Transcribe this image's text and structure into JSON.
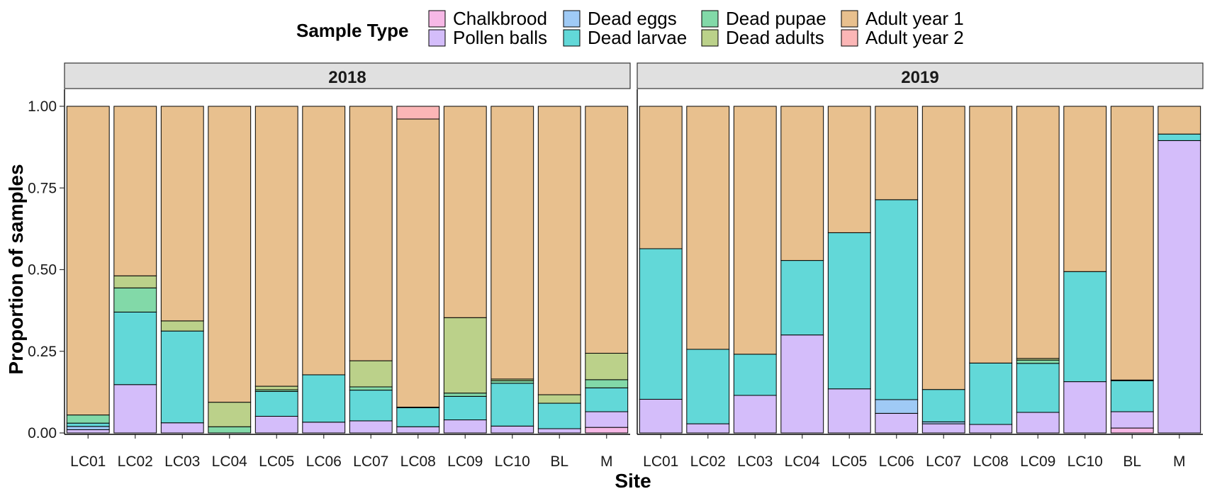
{
  "chart_data": {
    "type": "bar",
    "stacked": true,
    "xlabel": "Site",
    "ylabel": "Proportion of samples",
    "ylim": [
      0,
      1
    ],
    "yticks": [
      "0.00",
      "0.25",
      "0.50",
      "0.75",
      "1.00"
    ],
    "ytick_values": [
      0,
      0.25,
      0.5,
      0.75,
      1.0
    ],
    "grid": false,
    "legend": {
      "title": "Sample Type",
      "placement": "top",
      "items": [
        {
          "name": "Chalkbrood",
          "color": "#f7b8e6"
        },
        {
          "name": "Pollen balls",
          "color": "#d4bdfa"
        },
        {
          "name": "Dead eggs",
          "color": "#9fcaf5"
        },
        {
          "name": "Dead larvae",
          "color": "#62d8d8"
        },
        {
          "name": "Dead pupae",
          "color": "#82d9a8"
        },
        {
          "name": "Dead adults",
          "color": "#bbd18a"
        },
        {
          "name": "Adult year 1",
          "color": "#e8c08e"
        },
        {
          "name": "Adult year 2",
          "color": "#fbb6b6"
        }
      ]
    },
    "stack_order": [
      "Chalkbrood",
      "Pollen balls",
      "Dead eggs",
      "Dead larvae",
      "Dead pupae",
      "Dead adults",
      "Adult year 1",
      "Adult year 2"
    ],
    "categories": [
      "LC01",
      "LC02",
      "LC03",
      "LC04",
      "LC05",
      "LC06",
      "LC07",
      "LC08",
      "LC09",
      "LC10",
      "BL",
      "M"
    ],
    "panels": [
      {
        "title": "2018",
        "bars": [
          {
            "site": "LC01",
            "values": [
              0,
              0.01,
              0.01,
              0.01,
              0.025,
              0,
              0.945,
              0
            ]
          },
          {
            "site": "LC02",
            "values": [
              0,
              0.148,
              0,
              0.222,
              0.074,
              0.037,
              0.519,
              0
            ]
          },
          {
            "site": "LC03",
            "values": [
              0,
              0.031,
              0,
              0.281,
              0,
              0.031,
              0.657,
              0
            ]
          },
          {
            "site": "LC04",
            "values": [
              0,
              0,
              0,
              0,
              0.019,
              0.075,
              0.906,
              0
            ]
          },
          {
            "site": "LC05",
            "values": [
              0,
              0.051,
              0,
              0.076,
              0.005,
              0.011,
              0.857,
              0
            ]
          },
          {
            "site": "LC06",
            "values": [
              0,
              0.033,
              0,
              0.145,
              0,
              0,
              0.822,
              0
            ]
          },
          {
            "site": "LC07",
            "values": [
              0,
              0.037,
              0,
              0.094,
              0.01,
              0.08,
              0.779,
              0
            ]
          },
          {
            "site": "LC08",
            "values": [
              0,
              0.019,
              0,
              0.058,
              0.002,
              0,
              0.882,
              0.039
            ]
          },
          {
            "site": "LC09",
            "values": [
              0,
              0.04,
              0,
              0.072,
              0.01,
              0.231,
              0.647,
              0
            ]
          },
          {
            "site": "LC10",
            "values": [
              0,
              0.021,
              0,
              0.131,
              0.008,
              0.005,
              0.835,
              0
            ]
          },
          {
            "site": "BL",
            "values": [
              0,
              0.013,
              0,
              0.078,
              0,
              0.026,
              0.883,
              0
            ]
          },
          {
            "site": "M",
            "values": [
              0.017,
              0.048,
              0,
              0.073,
              0.025,
              0.081,
              0.756,
              0
            ]
          }
        ]
      },
      {
        "title": "2019",
        "bars": [
          {
            "site": "LC01",
            "values": [
              0,
              0.103,
              0,
              0.461,
              0,
              0,
              0.436,
              0
            ]
          },
          {
            "site": "LC02",
            "values": [
              0,
              0.028,
              0,
              0.228,
              0,
              0,
              0.744,
              0
            ]
          },
          {
            "site": "LC03",
            "values": [
              0,
              0.115,
              0,
              0.126,
              0,
              0,
              0.759,
              0
            ]
          },
          {
            "site": "LC04",
            "values": [
              0,
              0.3,
              0,
              0.228,
              0,
              0,
              0.472,
              0
            ]
          },
          {
            "site": "LC05",
            "values": [
              0,
              0.135,
              0,
              0.478,
              0,
              0,
              0.387,
              0
            ]
          },
          {
            "site": "LC06",
            "values": [
              0,
              0.06,
              0.042,
              0.612,
              0,
              0,
              0.286,
              0
            ]
          },
          {
            "site": "LC07",
            "values": [
              0,
              0.028,
              0.006,
              0.099,
              0,
              0,
              0.867,
              0
            ]
          },
          {
            "site": "LC08",
            "values": [
              0,
              0.026,
              0,
              0.188,
              0,
              0,
              0.786,
              0
            ]
          },
          {
            "site": "LC09",
            "values": [
              0,
              0.063,
              0,
              0.15,
              0.01,
              0.005,
              0.772,
              0
            ]
          },
          {
            "site": "LC10",
            "values": [
              0,
              0.157,
              0,
              0.337,
              0,
              0,
              0.506,
              0
            ]
          },
          {
            "site": "BL",
            "values": [
              0.015,
              0.05,
              0,
              0.095,
              0,
              0.002,
              0.838,
              0
            ]
          },
          {
            "site": "M",
            "values": [
              0,
              0.895,
              0,
              0.02,
              0,
              0,
              0.085,
              0
            ]
          }
        ]
      }
    ]
  }
}
